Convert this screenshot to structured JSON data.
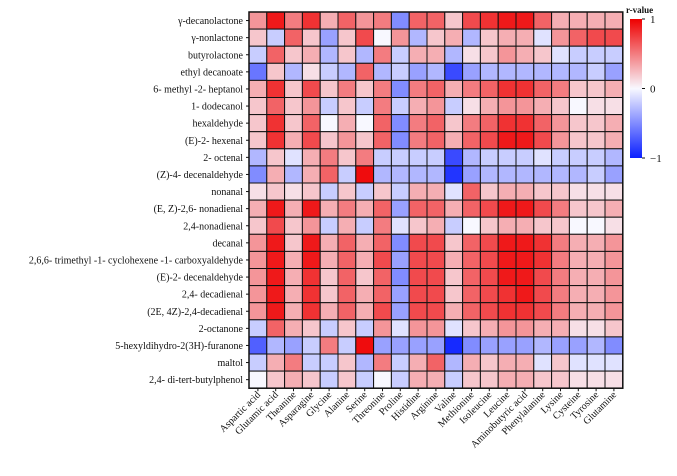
{
  "chart_data": {
    "type": "heatmap",
    "title": "",
    "xlabel": "",
    "ylabel": "",
    "rows": [
      "γ-decanolactone",
      "γ-nonlactone",
      "butyrolactone",
      "ethyl decanoate",
      "6- methyl -2- heptanol",
      "1- dodecanol",
      "hexaldehyde",
      "(E)-2- hexenal",
      "2- octenal",
      "(Z)-4- decenaldehyde",
      "nonanal",
      "(E, Z)-2,6- nonadienal",
      "2,4-nonadienal",
      "decanal",
      "2,6,6- trimethyl -1- cyclohexene -1- carboxyaldehyde",
      "(E)-2- decenaldehyde",
      "2,4- decadienal",
      "(2E, 4Z)-2,4-decadienal",
      "2-octanone",
      "5-hexyldihydro-2(3H)-furanone",
      "maltol",
      "2,4- di-tert-butylphenol"
    ],
    "columns": [
      "Aspartic acid",
      "Glutamic acid",
      "Theanine",
      "Asparagine",
      "Glycine",
      "Alanine",
      "Serine",
      "Threonine",
      "Proline",
      "Histidine",
      "Arginine",
      "Valine",
      "Methionine",
      "Isoleucine",
      "Leucine",
      "Aminobutyric acid",
      "Phenylalanine",
      "Lysine",
      "Cysteine",
      "Tyrosine",
      "Glutamine"
    ],
    "values": [
      [
        0.4,
        0.9,
        0.5,
        0.8,
        0.3,
        0.6,
        0.4,
        0.5,
        -0.5,
        0.6,
        0.6,
        0.2,
        0.7,
        0.8,
        0.9,
        0.9,
        0.6,
        0.3,
        0.3,
        0.3,
        0.3
      ],
      [
        0.2,
        -0.2,
        0.6,
        0.2,
        -0.4,
        0.2,
        0.7,
        0.0,
        0.4,
        -0.3,
        0.2,
        0.3,
        -0.3,
        0.2,
        0.3,
        0.3,
        -0.1,
        0.4,
        0.6,
        0.7,
        0.7
      ],
      [
        -0.2,
        0.6,
        0.2,
        0.3,
        -0.3,
        0.2,
        -0.3,
        0.5,
        -0.2,
        0.3,
        0.3,
        -0.3,
        0.1,
        0.2,
        0.4,
        0.3,
        0.2,
        -0.1,
        -0.2,
        -0.2,
        -0.2
      ],
      [
        -0.6,
        0.2,
        -0.3,
        0.1,
        -0.2,
        -0.3,
        0.6,
        -0.3,
        -0.2,
        -0.4,
        -0.3,
        -0.8,
        -0.4,
        -0.3,
        -0.3,
        -0.3,
        -0.3,
        -0.3,
        -0.3,
        -0.2,
        -0.4
      ],
      [
        0.3,
        0.8,
        0.2,
        0.7,
        0.2,
        0.5,
        0.2,
        0.5,
        -0.5,
        0.5,
        0.6,
        0.3,
        0.5,
        0.6,
        0.8,
        0.8,
        0.6,
        0.5,
        0.2,
        0.2,
        0.3
      ],
      [
        0.2,
        0.6,
        0.2,
        0.4,
        -0.2,
        0.2,
        -0.2,
        0.5,
        -0.2,
        0.3,
        0.4,
        -0.2,
        0.1,
        0.3,
        0.4,
        0.4,
        0.3,
        0.2,
        0.0,
        0.1,
        0.1
      ],
      [
        0.2,
        0.8,
        0.2,
        0.6,
        0.0,
        0.3,
        0.0,
        0.6,
        -0.5,
        0.5,
        0.6,
        0.2,
        0.5,
        0.6,
        0.8,
        0.8,
        0.6,
        0.4,
        0.2,
        0.2,
        0.3
      ],
      [
        0.2,
        0.8,
        0.3,
        0.7,
        0.2,
        0.4,
        0.2,
        0.6,
        -0.5,
        0.5,
        0.6,
        0.3,
        0.6,
        0.7,
        0.9,
        0.9,
        0.7,
        0.4,
        0.2,
        0.2,
        0.3
      ],
      [
        -0.3,
        0.2,
        -0.1,
        0.3,
        0.5,
        0.2,
        0.5,
        -0.2,
        -0.2,
        -0.2,
        -0.2,
        -0.8,
        -0.3,
        -0.2,
        -0.2,
        -0.2,
        -0.1,
        -0.2,
        -0.2,
        -0.2,
        -0.3
      ],
      [
        -0.5,
        0.3,
        -0.3,
        0.3,
        0.6,
        -0.2,
        0.95,
        -0.3,
        -0.3,
        -0.3,
        -0.3,
        -0.9,
        -0.4,
        -0.3,
        -0.3,
        -0.3,
        -0.3,
        -0.3,
        -0.3,
        -0.2,
        -0.4
      ],
      [
        0.1,
        0.2,
        0.1,
        0.2,
        -0.2,
        0.2,
        -0.2,
        0.2,
        -0.2,
        0.3,
        0.3,
        -0.1,
        0.6,
        0.2,
        0.3,
        0.3,
        0.2,
        0.2,
        0.1,
        0.1,
        0.1
      ],
      [
        0.3,
        0.9,
        0.3,
        0.9,
        0.3,
        0.5,
        0.3,
        0.6,
        -0.4,
        0.6,
        0.6,
        0.3,
        0.6,
        0.7,
        0.9,
        0.9,
        0.7,
        0.5,
        0.2,
        0.2,
        0.3
      ],
      [
        0.2,
        0.7,
        0.2,
        0.4,
        -0.2,
        0.3,
        -0.2,
        0.5,
        -0.1,
        0.2,
        0.3,
        -0.2,
        0.0,
        0.2,
        0.3,
        0.3,
        0.2,
        0.2,
        0.0,
        0.0,
        0.1
      ],
      [
        0.4,
        0.9,
        0.2,
        0.9,
        0.3,
        0.6,
        0.3,
        0.6,
        -0.5,
        0.7,
        0.7,
        0.2,
        0.6,
        0.7,
        0.9,
        0.9,
        0.8,
        0.5,
        0.3,
        0.3,
        0.4
      ],
      [
        0.4,
        0.9,
        0.3,
        0.9,
        0.3,
        0.6,
        0.3,
        0.7,
        -0.4,
        0.7,
        0.7,
        0.3,
        0.6,
        0.7,
        0.9,
        0.9,
        0.8,
        0.5,
        0.3,
        0.3,
        0.4
      ],
      [
        0.4,
        0.9,
        0.3,
        0.8,
        0.2,
        0.6,
        0.2,
        0.6,
        -0.5,
        0.7,
        0.7,
        0.2,
        0.6,
        0.7,
        0.9,
        0.9,
        0.7,
        0.5,
        0.3,
        0.3,
        0.4
      ],
      [
        0.4,
        0.9,
        0.3,
        0.8,
        0.2,
        0.6,
        0.3,
        0.6,
        -0.4,
        0.7,
        0.7,
        0.2,
        0.6,
        0.7,
        0.8,
        0.9,
        0.7,
        0.5,
        0.3,
        0.3,
        0.4
      ],
      [
        0.4,
        0.9,
        0.3,
        0.8,
        0.3,
        0.6,
        0.3,
        0.7,
        -0.4,
        0.7,
        0.7,
        0.3,
        0.6,
        0.7,
        0.8,
        0.8,
        0.7,
        0.5,
        0.3,
        0.3,
        0.4
      ],
      [
        -0.2,
        0.6,
        0.3,
        0.2,
        -0.2,
        0.2,
        -0.2,
        0.4,
        -0.1,
        0.4,
        0.4,
        -0.1,
        0.2,
        0.3,
        0.4,
        0.4,
        0.3,
        0.3,
        0.1,
        0.1,
        0.2
      ],
      [
        -0.7,
        -0.3,
        -0.4,
        -0.2,
        0.5,
        -0.2,
        0.95,
        -0.4,
        -0.4,
        -0.4,
        -0.4,
        -0.95,
        -0.5,
        -0.4,
        -0.4,
        -0.4,
        -0.3,
        -0.4,
        -0.4,
        -0.3,
        -0.5
      ],
      [
        -0.2,
        0.3,
        0.5,
        -0.2,
        -0.2,
        0.2,
        -0.3,
        0.5,
        -0.2,
        0.3,
        0.6,
        -0.3,
        0.3,
        0.2,
        0.3,
        0.3,
        -0.1,
        0.2,
        -0.1,
        -0.1,
        -0.1
      ],
      [
        0.0,
        0.2,
        0.3,
        0.2,
        -0.2,
        0.2,
        -0.2,
        0.0,
        -0.2,
        0.3,
        0.3,
        -0.2,
        0.2,
        0.2,
        0.3,
        0.3,
        0.2,
        0.2,
        0.1,
        0.1,
        0.1
      ]
    ],
    "colorbar": {
      "title": "r-value",
      "min": -1,
      "max": 1,
      "ticks": [
        1,
        0,
        -1
      ],
      "tick_labels": [
        "1",
        "0",
        "−1"
      ],
      "colors": {
        "negative": "#0a1fff",
        "zero": "#f8f8ff",
        "positive": "#ee0000"
      }
    },
    "grid": true,
    "legend": "right"
  }
}
